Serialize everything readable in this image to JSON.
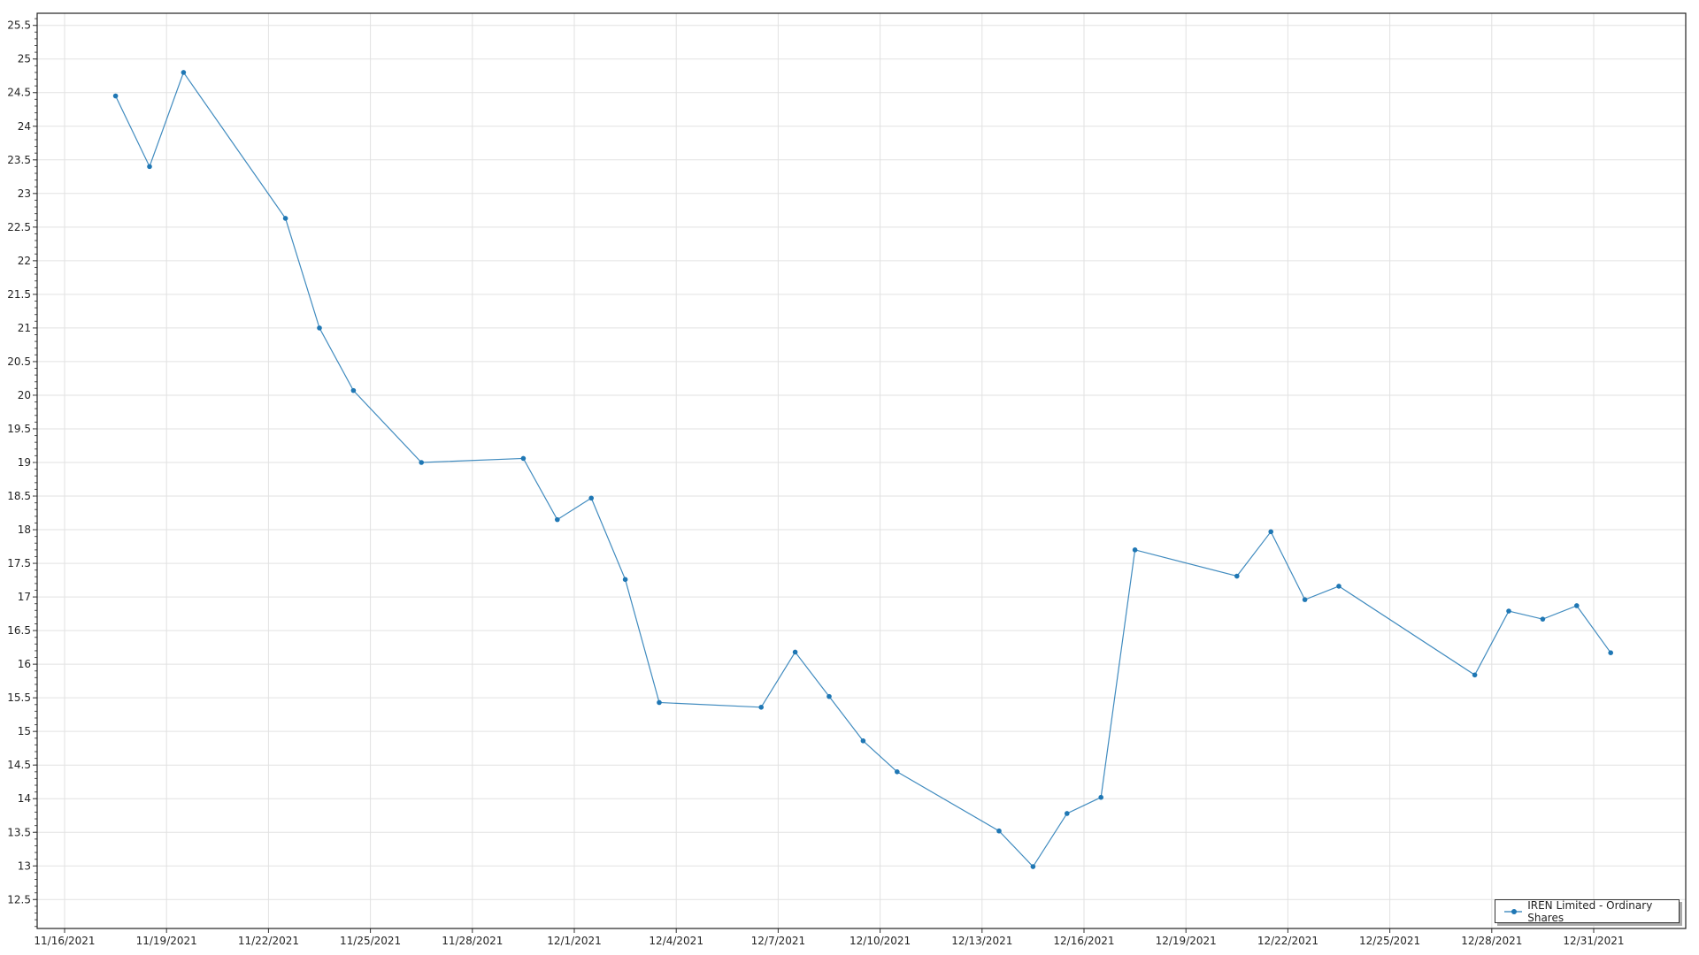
{
  "chart_data": {
    "type": "line",
    "title": "",
    "xlabel": "",
    "ylabel": "",
    "ylim": [
      12.07,
      25.68
    ],
    "xlim": [
      "2021-11-15",
      "2022-01-02"
    ],
    "grid": true,
    "legend_position": "bottom-right",
    "x_tick_labels": [
      "11/16/2021",
      "11/19/2021",
      "11/22/2021",
      "11/25/2021",
      "11/28/2021",
      "12/1/2021",
      "12/4/2021",
      "12/7/2021",
      "12/10/2021",
      "12/13/2021",
      "12/16/2021",
      "12/19/2021",
      "12/22/2021",
      "12/25/2021",
      "12/28/2021",
      "12/31/2021"
    ],
    "y_tick_labels": [
      "12.5",
      "13",
      "13.5",
      "14",
      "14.5",
      "15",
      "15.5",
      "16",
      "16.5",
      "17",
      "17.5",
      "18",
      "18.5",
      "19",
      "19.5",
      "20",
      "20.5",
      "21",
      "21.5",
      "22",
      "22.5",
      "23",
      "23.5",
      "24",
      "24.5",
      "25",
      "25.5"
    ],
    "series": [
      {
        "name": "IREN Limited - Ordinary Shares",
        "color": "#1f77b4",
        "x": [
          "2021-11-17",
          "2021-11-18",
          "2021-11-19",
          "2021-11-22",
          "2021-11-23",
          "2021-11-24",
          "2021-11-26",
          "2021-11-29",
          "2021-11-30",
          "2021-12-01",
          "2021-12-02",
          "2021-12-03",
          "2021-12-06",
          "2021-12-07",
          "2021-12-08",
          "2021-12-09",
          "2021-12-10",
          "2021-12-13",
          "2021-12-14",
          "2021-12-15",
          "2021-12-16",
          "2021-12-17",
          "2021-12-20",
          "2021-12-21",
          "2021-12-22",
          "2021-12-23",
          "2021-12-27",
          "2021-12-28",
          "2021-12-29",
          "2021-12-30",
          "2021-12-31"
        ],
        "values": [
          24.45,
          23.4,
          24.8,
          22.63,
          21.0,
          20.07,
          19.0,
          19.06,
          18.15,
          18.47,
          17.26,
          15.43,
          15.36,
          16.18,
          15.52,
          14.86,
          14.4,
          13.52,
          12.99,
          13.78,
          14.02,
          17.7,
          17.31,
          17.97,
          16.96,
          17.16,
          15.84,
          16.79,
          16.67,
          16.87,
          16.17
        ]
      }
    ]
  }
}
